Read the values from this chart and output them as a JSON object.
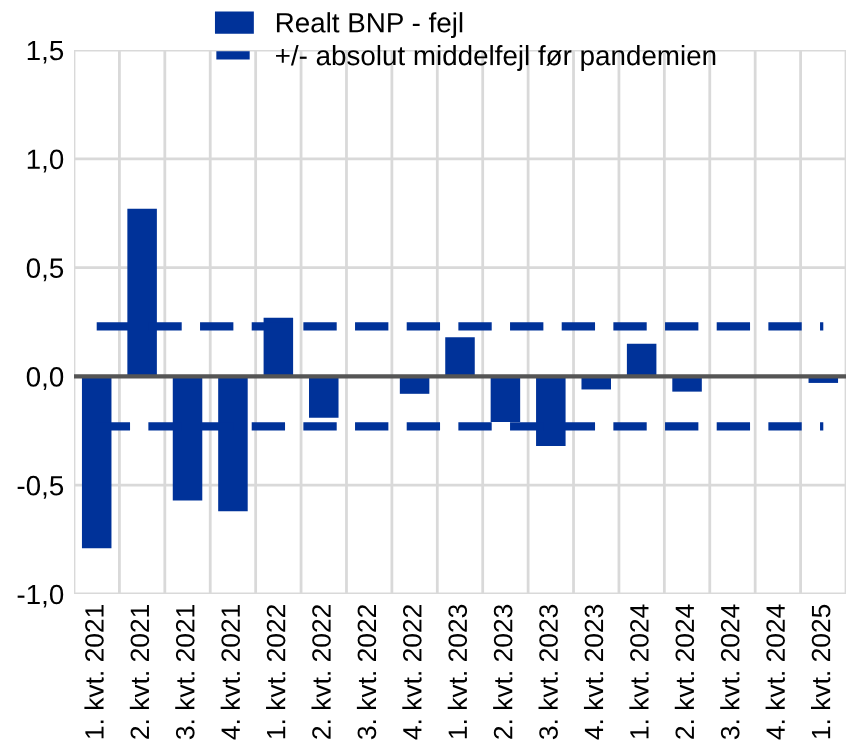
{
  "chart_data": {
    "type": "bar",
    "categories": [
      "1. kvt. 2021",
      "2. kvt. 2021",
      "3. kvt. 2021",
      "4. kvt. 2021",
      "1. kvt. 2022",
      "2. kvt. 2022",
      "3. kvt. 2022",
      "4. kvt. 2022",
      "1. kvt. 2023",
      "2. kvt. 2023",
      "3. kvt. 2023",
      "4. kvt. 2023",
      "1. kvt. 2024",
      "2. kvt. 2024",
      "3. kvt. 2024",
      "4. kvt. 2024",
      "1. kvt. 2025"
    ],
    "series": [
      {
        "name": "Realt BNP - fejl",
        "color": "#003299",
        "values": [
          -0.79,
          0.77,
          -0.57,
          -0.62,
          0.27,
          -0.19,
          0,
          -0.08,
          0.18,
          -0.21,
          -0.32,
          -0.06,
          0.15,
          -0.07,
          0,
          0,
          -0.03
        ]
      }
    ],
    "ref_lines": [
      {
        "axis": "y",
        "value": 0.23,
        "label": "+/- absolut middelfejl før pandemien",
        "color": "#003299",
        "line_style": "dashed"
      },
      {
        "axis": "y",
        "value": -0.23,
        "label": null,
        "color": "#003299",
        "line_style": "dashed"
      }
    ],
    "ylim": [
      -1.0,
      1.5
    ],
    "yticks": [
      {
        "value": -1.0,
        "label": "-1,0"
      },
      {
        "value": -0.5,
        "label": "-0,5"
      },
      {
        "value": 0.0,
        "label": "0,0"
      },
      {
        "value": 0.5,
        "label": "0,5"
      },
      {
        "value": 1.0,
        "label": "1,0"
      },
      {
        "value": 1.5,
        "label": "1,5"
      }
    ],
    "grid": true,
    "legend": "top left"
  }
}
